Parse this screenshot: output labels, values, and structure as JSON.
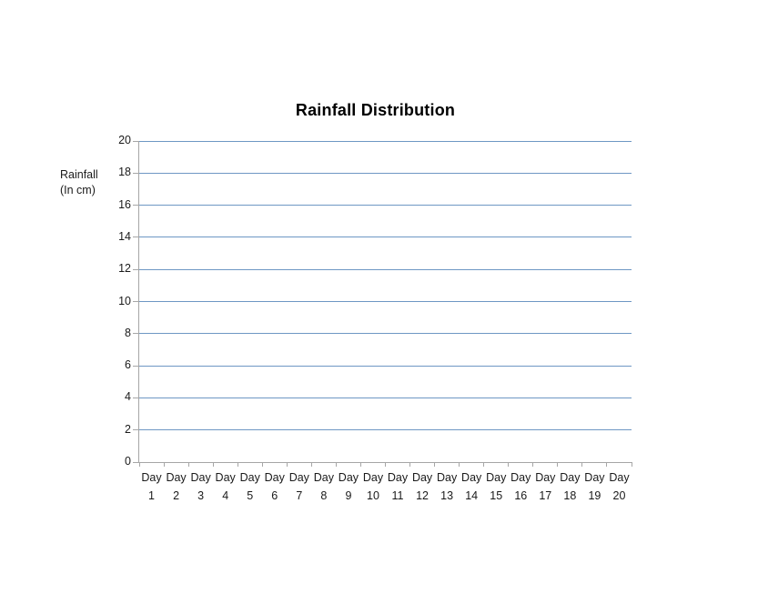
{
  "chart_data": {
    "type": "bar",
    "title": "Rainfall Distribution",
    "xlabel": "",
    "ylabel": "Rainfall (In cm)",
    "ylabel_lines": [
      "Rainfall",
      "(In cm)"
    ],
    "categories": [
      "Day 1",
      "Day 2",
      "Day 3",
      "Day 4",
      "Day 5",
      "Day 6",
      "Day 7",
      "Day 8",
      "Day 9",
      "Day 10",
      "Day 11",
      "Day 12",
      "Day 13",
      "Day 14",
      "Day 15",
      "Day 16",
      "Day 17",
      "Day 18",
      "Day 19",
      "Day 20"
    ],
    "values": [],
    "y_ticks": [
      0,
      2,
      4,
      6,
      8,
      10,
      12,
      14,
      16,
      18,
      20
    ],
    "ylim": [
      0,
      20
    ],
    "grid": "horizontal",
    "legend": "none",
    "colors": {
      "gridline": "#6e97c4",
      "axis": "#a6a6a6",
      "tick_text": "#1a1a1a",
      "title_text": "#000000",
      "background": "#ffffff"
    }
  }
}
